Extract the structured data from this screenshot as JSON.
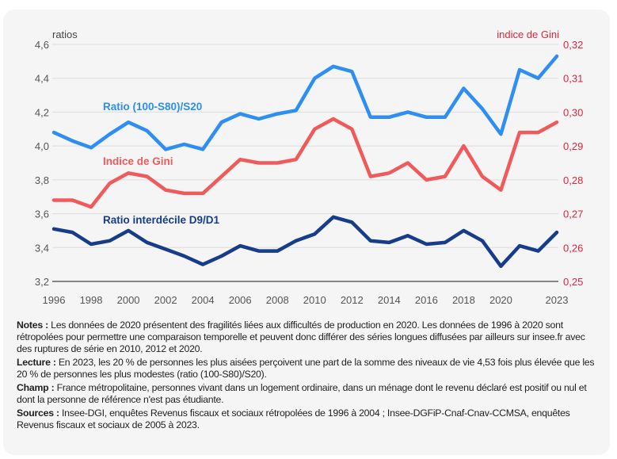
{
  "chart_data": {
    "type": "line",
    "x": [
      1996,
      1997,
      1998,
      1999,
      2000,
      2001,
      2002,
      2003,
      2004,
      2005,
      2006,
      2007,
      2008,
      2009,
      2010,
      2011,
      2012,
      2013,
      2014,
      2015,
      2016,
      2017,
      2018,
      2019,
      2020,
      2021,
      2022,
      2023
    ],
    "x_tick_labels": [
      "1996",
      "1998",
      "2000",
      "2002",
      "2004",
      "2006",
      "2008",
      "2010",
      "2012",
      "2014",
      "2016",
      "2018",
      "2020",
      "2023"
    ],
    "left_axis": {
      "label": "ratios",
      "ylim": [
        3.2,
        4.6
      ],
      "tick_labels": [
        "3,2",
        "3,4",
        "3,6",
        "3,8",
        "4,0",
        "4,2",
        "4,4",
        "4,6"
      ]
    },
    "right_axis": {
      "label": "indice de Gini",
      "ylim": [
        0.25,
        0.32
      ],
      "tick_labels": [
        "0,25",
        "0,26",
        "0,27",
        "0,28",
        "0,29",
        "0,30",
        "0,31",
        "0,32"
      ],
      "color": "#d8283f"
    },
    "grid": true,
    "series": [
      {
        "name": "Ratio (100-S80)/S20",
        "axis": "left",
        "color": "#2e8ef2",
        "values": [
          4.08,
          4.03,
          3.99,
          4.07,
          4.14,
          4.09,
          3.98,
          4.01,
          3.98,
          4.14,
          4.19,
          4.16,
          4.19,
          4.21,
          4.4,
          4.47,
          4.44,
          4.17,
          4.17,
          4.2,
          4.17,
          4.17,
          4.34,
          4.22,
          4.07,
          4.45,
          4.4,
          4.53
        ]
      },
      {
        "name": "Indice de Gini",
        "axis": "right",
        "color": "#f05a5b",
        "values": [
          0.274,
          0.274,
          0.272,
          0.279,
          0.282,
          0.281,
          0.277,
          0.276,
          0.276,
          0.281,
          0.286,
          0.285,
          0.285,
          0.286,
          0.295,
          0.298,
          0.295,
          0.281,
          0.282,
          0.285,
          0.28,
          0.281,
          0.29,
          0.281,
          0.277,
          0.294,
          0.294,
          0.297
        ]
      },
      {
        "name": "Ratio interdécile D9/D1",
        "axis": "left",
        "color": "#173d8a",
        "values": [
          3.51,
          3.49,
          3.42,
          3.44,
          3.5,
          3.43,
          3.39,
          3.35,
          3.3,
          3.35,
          3.41,
          3.38,
          3.38,
          3.44,
          3.48,
          3.58,
          3.55,
          3.44,
          3.43,
          3.47,
          3.42,
          3.43,
          3.5,
          3.44,
          3.29,
          3.41,
          3.38,
          3.49
        ]
      }
    ]
  },
  "notes": {
    "notes_label": "Notes :",
    "notes_text": " Les données de 2020 présentent des fragilités liées aux difficultés de production en 2020. Les données de 1996 à 2020 sont rétropolées pour permettre une comparaison temporelle et peuvent donc différer des séries longues diffusées par ailleurs sur insee.fr avec des ruptures de série en 2010, 2012 et 2020.",
    "lecture_label": "Lecture :",
    "lecture_text": " En 2023, les 20 % de personnes les plus aisées perçoivent une part de la somme des niveaux de vie 4,53 fois plus élevée que les 20 % de personnes les plus modestes (ratio (100-S80)/S20).",
    "champ_label": "Champ :",
    "champ_text": " France métropolitaine, personnes vivant dans un logement ordinaire, dans un ménage dont le revenu déclaré est positif ou nul et dont la personne de référence n'est pas étudiante.",
    "sources_label": "Sources :",
    "sources_text": " Insee-DGI, enquêtes Revenus fiscaux et sociaux rétropolées de 1996 à 2004 ; Insee-DGFiP-Cnaf-Cnav-CCMSA, enquêtes Revenus fiscaux et sociaux de 2005 à 2023."
  }
}
